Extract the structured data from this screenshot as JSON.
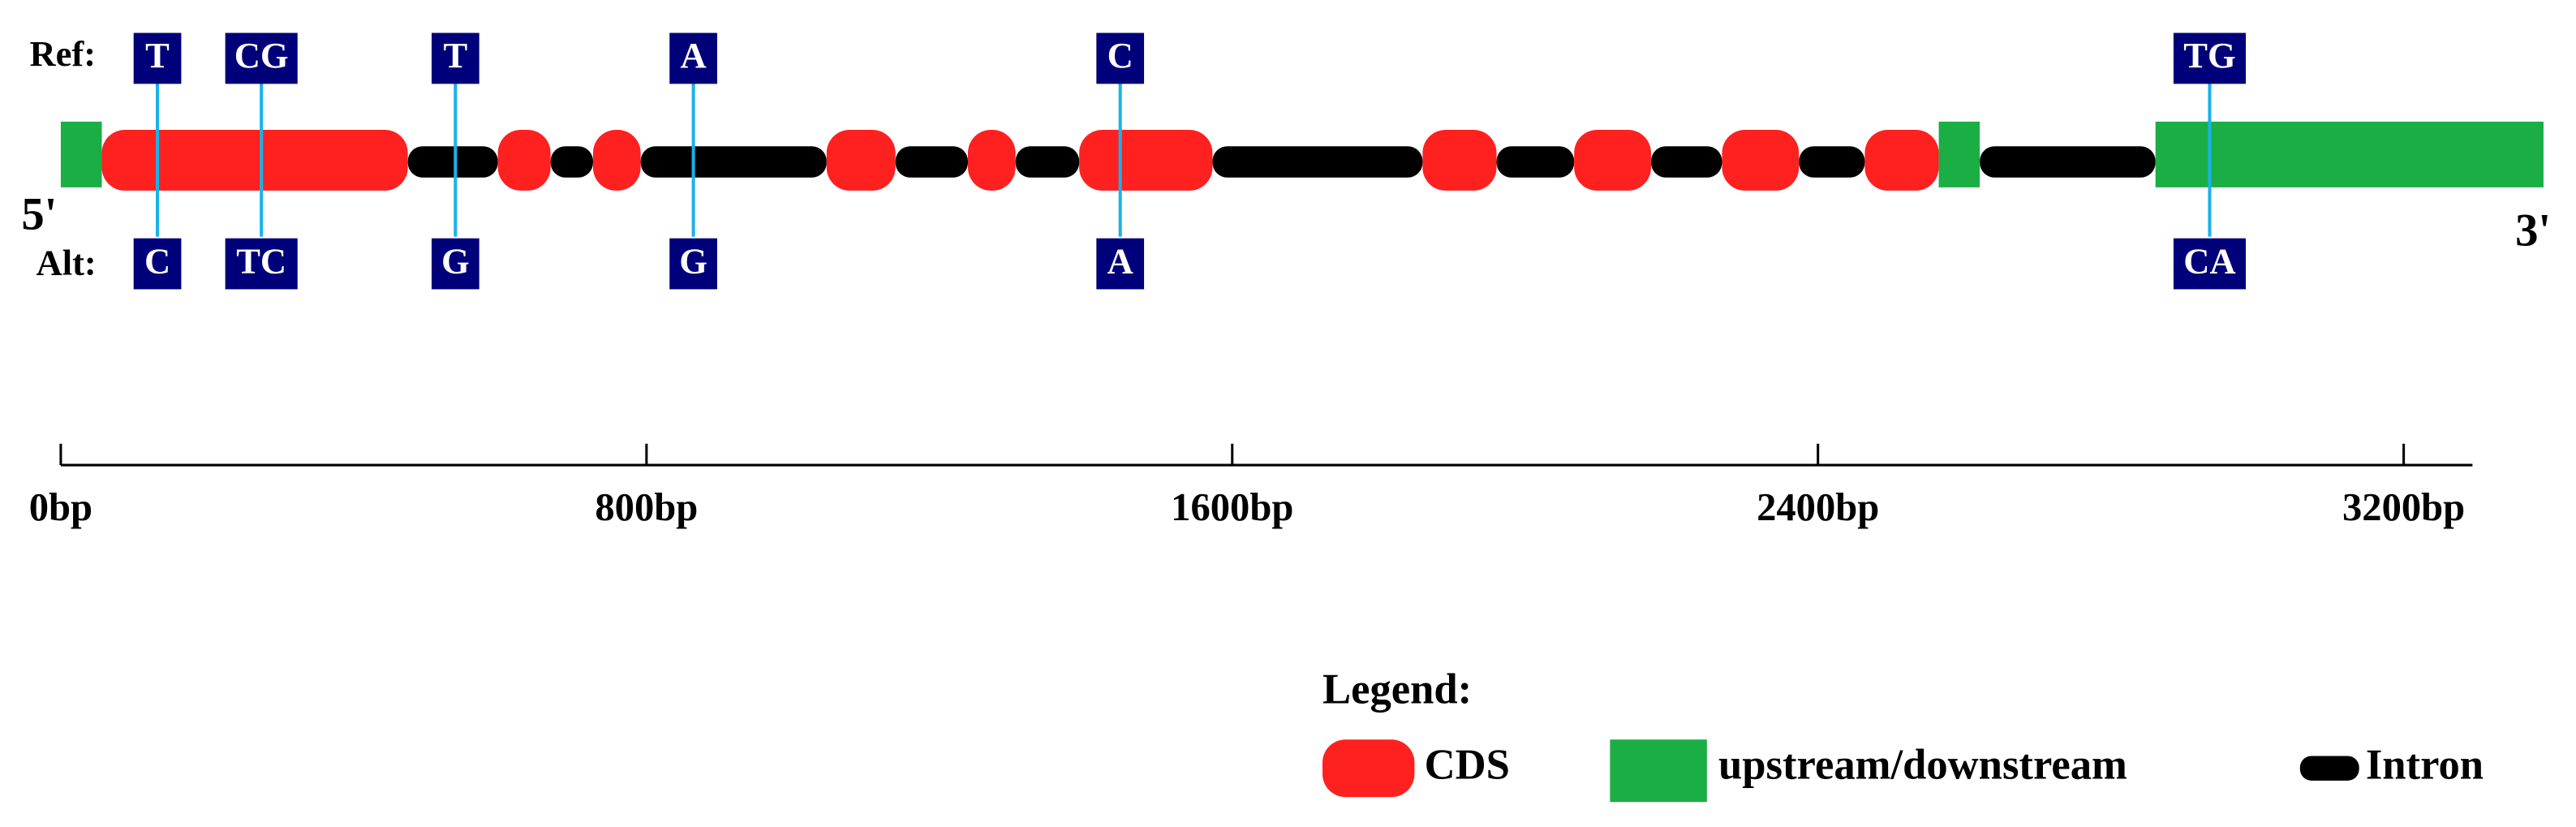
{
  "labels": {
    "ref": "Ref:",
    "alt": "Alt:",
    "five_prime": "5'",
    "three_prime": "3'"
  },
  "axis": {
    "xlim": [
      0,
      3294
    ],
    "ticks": [
      {
        "value": 0,
        "label": "0bp"
      },
      {
        "value": 800,
        "label": "800bp"
      },
      {
        "value": 1600,
        "label": "1600bp"
      },
      {
        "value": 2400,
        "label": "2400bp"
      },
      {
        "value": 3200,
        "label": "3200bp"
      }
    ]
  },
  "features": {
    "intron": [
      {
        "start": 474,
        "end": 597
      },
      {
        "start": 669,
        "end": 727
      },
      {
        "start": 792,
        "end": 1046
      },
      {
        "start": 1140,
        "end": 1239
      },
      {
        "start": 1304,
        "end": 1391
      },
      {
        "start": 1573,
        "end": 1860
      },
      {
        "start": 1961,
        "end": 2067
      },
      {
        "start": 2172,
        "end": 2269
      },
      {
        "start": 2374,
        "end": 2464
      },
      {
        "start": 2621,
        "end": 2861
      }
    ],
    "cds": [
      {
        "start": 56,
        "end": 474
      },
      {
        "start": 597,
        "end": 669
      },
      {
        "start": 727,
        "end": 792
      },
      {
        "start": 1046,
        "end": 1140
      },
      {
        "start": 1239,
        "end": 1304
      },
      {
        "start": 1391,
        "end": 1573
      },
      {
        "start": 1860,
        "end": 1961
      },
      {
        "start": 2067,
        "end": 2172
      },
      {
        "start": 2269,
        "end": 2374
      },
      {
        "start": 2464,
        "end": 2565
      }
    ],
    "flank": [
      {
        "start": 0,
        "end": 56
      },
      {
        "start": 2565,
        "end": 2621
      },
      {
        "start": 2861,
        "end": 3391
      }
    ]
  },
  "variants": [
    {
      "position": 132,
      "ref": "T",
      "alt": "C"
    },
    {
      "position": 274,
      "ref": "CG",
      "alt": "TC"
    },
    {
      "position": 539,
      "ref": "T",
      "alt": "G"
    },
    {
      "position": 864,
      "ref": "A",
      "alt": "G"
    },
    {
      "position": 1447,
      "ref": "C",
      "alt": "A"
    },
    {
      "position": 2935,
      "ref": "TG",
      "alt": "CA"
    }
  ],
  "legend": {
    "title": "Legend:",
    "cds": {
      "label": "CDS",
      "color": "#ff2020"
    },
    "flank": {
      "label": "upstream/downstream",
      "color": "#1aae45"
    },
    "intron": {
      "label": "Intron",
      "color": "#000000"
    }
  }
}
